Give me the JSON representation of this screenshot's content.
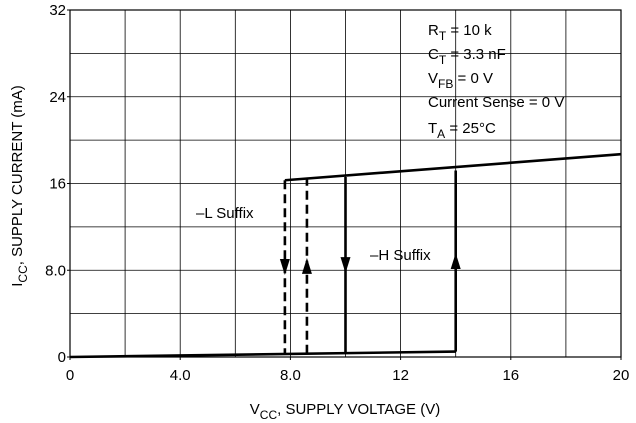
{
  "chart_data": {
    "type": "line",
    "xlim": [
      0,
      20
    ],
    "ylim": [
      0,
      32
    ],
    "xticks": [
      0,
      {
        "value": 4,
        "label": "4.0"
      },
      {
        "value": 8,
        "label": "8.0"
      },
      12,
      16,
      20
    ],
    "yticks": [
      0,
      {
        "value": 8,
        "label": "8.0"
      },
      16,
      24,
      32
    ],
    "x_grid": [
      2,
      4,
      6,
      8,
      10,
      12,
      14,
      16,
      18
    ],
    "y_grid": [
      4,
      8,
      12,
      16,
      20,
      24,
      28
    ],
    "grid": true,
    "color": "#000000",
    "x_label": {
      "main": "V",
      "sub": "CC",
      "rest": ", SUPPLY VOLTAGE (V)"
    },
    "y_label": {
      "main": "I",
      "sub": "CC",
      "rest": ", SUPPLY CURRENT (mA)"
    },
    "conditions": [
      {
        "main": "R",
        "sub": "T",
        "rest": " = 10 k"
      },
      {
        "main": "C",
        "sub": "T",
        "rest": " = 3.3 nF"
      },
      {
        "main": "V",
        "sub": "FB",
        "rest": " = 0 V"
      },
      {
        "main": "Current Sense = 0 V",
        "sub": "",
        "rest": ""
      },
      {
        "main": "T",
        "sub": "A",
        "rest": " = 25°C"
      }
    ],
    "annotations": [
      "–L Suffix",
      "–H Suffix"
    ],
    "lines": [
      {
        "x": [
          0,
          14
        ],
        "y": [
          0,
          0.5
        ],
        "dashed": false,
        "arrow": false
      },
      {
        "x": [
          7.8,
          20
        ],
        "y": [
          16.3,
          18.7
        ],
        "dashed": false,
        "arrow": false
      },
      {
        "x": [
          7.8,
          7.8
        ],
        "y": [
          16.3,
          0.3
        ],
        "dashed": true,
        "arrow": true
      },
      {
        "x": [
          8.6,
          8.6
        ],
        "y": [
          0.3,
          16.5
        ],
        "dashed": true,
        "arrow": true
      },
      {
        "x": [
          10,
          10
        ],
        "y": [
          16.6,
          0.35
        ],
        "dashed": false,
        "arrow": true
      },
      {
        "x": [
          14,
          14
        ],
        "y": [
          0.5,
          17.2
        ],
        "dashed": false,
        "arrow": true
      }
    ]
  }
}
